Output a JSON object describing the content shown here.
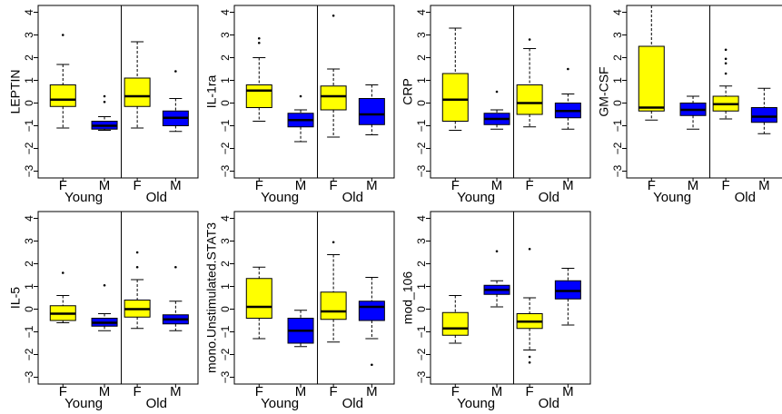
{
  "chart_data": {
    "type": "boxplot",
    "layout": "grid 2 rows x 4 columns (7 panels)",
    "panel_x_tick_labels": [
      "F",
      "M",
      "F",
      "M"
    ],
    "panel_group_labels": [
      "Young",
      "Old"
    ],
    "y_ticks": [
      4,
      3,
      2,
      1,
      0,
      -1,
      -2,
      -3
    ],
    "y_range": [
      -3.3,
      4.3
    ],
    "colors": {
      "F": "#ffff00",
      "M": "#0000ff",
      "outline": "#000000"
    },
    "panels": [
      {
        "ylabel": "LEPTIN",
        "boxes": [
          {
            "group": "Young",
            "sex": "F",
            "q1": -0.15,
            "median": 0.15,
            "q3": 0.8,
            "whisker_low": -1.1,
            "whisker_high": 1.7,
            "outliers": [
              3.0
            ]
          },
          {
            "group": "Young",
            "sex": "M",
            "q1": -1.15,
            "median": -1.0,
            "q3": -0.8,
            "whisker_low": -1.2,
            "whisker_high": -0.6,
            "outliers": [
              0.3,
              0.05
            ]
          },
          {
            "group": "Old",
            "sex": "F",
            "q1": -0.15,
            "median": 0.3,
            "q3": 1.1,
            "whisker_low": -1.1,
            "whisker_high": 2.7,
            "outliers": []
          },
          {
            "group": "Old",
            "sex": "M",
            "q1": -1.0,
            "median": -0.65,
            "q3": -0.35,
            "whisker_low": -1.25,
            "whisker_high": 0.2,
            "outliers": [
              1.4
            ]
          }
        ]
      },
      {
        "ylabel": "IL-1ra",
        "boxes": [
          {
            "group": "Young",
            "sex": "F",
            "q1": -0.2,
            "median": 0.55,
            "q3": 0.8,
            "whisker_low": -0.8,
            "whisker_high": 2.0,
            "outliers": [
              2.65,
              2.85
            ]
          },
          {
            "group": "Young",
            "sex": "M",
            "q1": -1.05,
            "median": -0.75,
            "q3": -0.45,
            "whisker_low": -1.7,
            "whisker_high": -0.3,
            "outliers": [
              0.3
            ]
          },
          {
            "group": "Old",
            "sex": "F",
            "q1": -0.3,
            "median": 0.3,
            "q3": 0.75,
            "whisker_low": -1.5,
            "whisker_high": 1.5,
            "outliers": [
              3.85
            ]
          },
          {
            "group": "Old",
            "sex": "M",
            "q1": -0.95,
            "median": -0.5,
            "q3": 0.2,
            "whisker_low": -1.4,
            "whisker_high": 0.8,
            "outliers": []
          }
        ]
      },
      {
        "ylabel": "CRP",
        "boxes": [
          {
            "group": "Young",
            "sex": "F",
            "q1": -0.8,
            "median": 0.15,
            "q3": 1.3,
            "whisker_low": -1.2,
            "whisker_high": 3.3,
            "outliers": []
          },
          {
            "group": "Young",
            "sex": "M",
            "q1": -0.95,
            "median": -0.7,
            "q3": -0.45,
            "whisker_low": -1.15,
            "whisker_high": -0.3,
            "outliers": [
              0.5
            ]
          },
          {
            "group": "Old",
            "sex": "F",
            "q1": -0.5,
            "median": 0.0,
            "q3": 0.8,
            "whisker_low": -1.05,
            "whisker_high": 2.4,
            "outliers": [
              2.8
            ]
          },
          {
            "group": "Old",
            "sex": "M",
            "q1": -0.65,
            "median": -0.35,
            "q3": 0.0,
            "whisker_low": -1.15,
            "whisker_high": 0.4,
            "outliers": [
              1.5
            ]
          }
        ]
      },
      {
        "ylabel": "GM-CSF",
        "boxes": [
          {
            "group": "Young",
            "sex": "F",
            "q1": -0.35,
            "median": -0.2,
            "q3": 2.5,
            "whisker_low": -0.75,
            "whisker_high": 4.3,
            "outliers": []
          },
          {
            "group": "Young",
            "sex": "M",
            "q1": -0.55,
            "median": -0.3,
            "q3": 0.0,
            "whisker_low": -1.15,
            "whisker_high": 0.3,
            "outliers": []
          },
          {
            "group": "Old",
            "sex": "F",
            "q1": -0.35,
            "median": -0.05,
            "q3": 0.3,
            "whisker_low": -0.7,
            "whisker_high": 0.75,
            "outliers": [
              1.3,
              1.75,
              1.95,
              2.35
            ]
          },
          {
            "group": "Old",
            "sex": "M",
            "q1": -0.85,
            "median": -0.6,
            "q3": -0.2,
            "whisker_low": -1.35,
            "whisker_high": 0.65,
            "outliers": []
          }
        ]
      },
      {
        "ylabel": "IL-5",
        "boxes": [
          {
            "group": "Young",
            "sex": "F",
            "q1": -0.5,
            "median": -0.2,
            "q3": 0.15,
            "whisker_low": -0.6,
            "whisker_high": 0.6,
            "outliers": [
              1.6
            ]
          },
          {
            "group": "Young",
            "sex": "M",
            "q1": -0.75,
            "median": -0.6,
            "q3": -0.4,
            "whisker_low": -0.95,
            "whisker_high": -0.2,
            "outliers": [
              1.05
            ]
          },
          {
            "group": "Old",
            "sex": "F",
            "q1": -0.35,
            "median": 0.0,
            "q3": 0.4,
            "whisker_low": -0.85,
            "whisker_high": 1.3,
            "outliers": [
              1.85,
              2.5
            ]
          },
          {
            "group": "Old",
            "sex": "M",
            "q1": -0.65,
            "median": -0.45,
            "q3": -0.25,
            "whisker_low": -0.95,
            "whisker_high": 0.35,
            "outliers": [
              1.85
            ]
          }
        ]
      },
      {
        "ylabel": "mono.Unstimulated.STAT3",
        "boxes": [
          {
            "group": "Young",
            "sex": "F",
            "q1": -0.4,
            "median": 0.1,
            "q3": 1.35,
            "whisker_low": -1.3,
            "whisker_high": 1.85,
            "outliers": []
          },
          {
            "group": "Young",
            "sex": "M",
            "q1": -1.5,
            "median": -0.95,
            "q3": -0.4,
            "whisker_low": -1.65,
            "whisker_high": -0.05,
            "outliers": []
          },
          {
            "group": "Old",
            "sex": "F",
            "q1": -0.45,
            "median": -0.1,
            "q3": 0.75,
            "whisker_low": -1.45,
            "whisker_high": 2.4,
            "outliers": [
              2.95
            ]
          },
          {
            "group": "Old",
            "sex": "M",
            "q1": -0.5,
            "median": 0.1,
            "q3": 0.35,
            "whisker_low": -1.3,
            "whisker_high": 1.4,
            "outliers": [
              -2.45
            ]
          }
        ]
      },
      {
        "ylabel": "mod_106",
        "boxes": [
          {
            "group": "Young",
            "sex": "F",
            "q1": -1.15,
            "median": -0.85,
            "q3": -0.15,
            "whisker_low": -1.5,
            "whisker_high": 0.6,
            "outliers": []
          },
          {
            "group": "Young",
            "sex": "M",
            "q1": 0.65,
            "median": 0.85,
            "q3": 1.05,
            "whisker_low": 0.1,
            "whisker_high": 1.25,
            "outliers": [
              2.55
            ]
          },
          {
            "group": "Old",
            "sex": "F",
            "q1": -0.85,
            "median": -0.55,
            "q3": -0.2,
            "whisker_low": -1.8,
            "whisker_high": 0.5,
            "outliers": [
              -2.1,
              -2.35,
              2.65
            ]
          },
          {
            "group": "Old",
            "sex": "M",
            "q1": 0.45,
            "median": 0.8,
            "q3": 1.25,
            "whisker_low": -0.7,
            "whisker_high": 1.8,
            "outliers": []
          }
        ]
      }
    ]
  }
}
